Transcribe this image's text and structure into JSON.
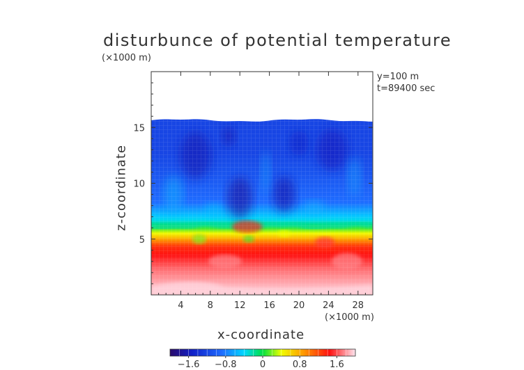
{
  "chart_data": {
    "type": "heatmap",
    "title": "disturbunce of potential temperature",
    "xlabel": "x-coordinate",
    "ylabel": "z-coordinate",
    "axis_unit": "(×1000 m)",
    "annotations": [
      "y=100 m",
      "t=89400 sec"
    ],
    "xlim": [
      0,
      30
    ],
    "ylim": [
      0,
      20
    ],
    "x_ticks": [
      4,
      8,
      12,
      16,
      20,
      24,
      28
    ],
    "y_ticks": [
      5,
      10,
      15
    ],
    "colorbar": {
      "range": [
        -2.0,
        2.0
      ],
      "ticks": [
        -1.6,
        -0.8,
        0,
        0.8,
        1.6
      ],
      "tick_labels": [
        "−1.6",
        "−0.8",
        "0",
        "0.8",
        "1.6"
      ]
    },
    "field": {
      "top_of_data_z": 15.7,
      "layers": [
        {
          "z_range": [
            9.5,
            15.7
          ],
          "value": -1.2
        },
        {
          "z_range": [
            7.0,
            9.5
          ],
          "value": -0.9
        },
        {
          "z_range": [
            6.0,
            7.0
          ],
          "value": -0.3
        },
        {
          "z_range": [
            5.3,
            6.0
          ],
          "value": 0.3
        },
        {
          "z_range": [
            3.5,
            5.3
          ],
          "value": 1.3
        },
        {
          "z_range": [
            1.0,
            3.5
          ],
          "value": 1.7
        },
        {
          "z_range": [
            0,
            1.0
          ],
          "value": 1.9
        }
      ]
    }
  }
}
